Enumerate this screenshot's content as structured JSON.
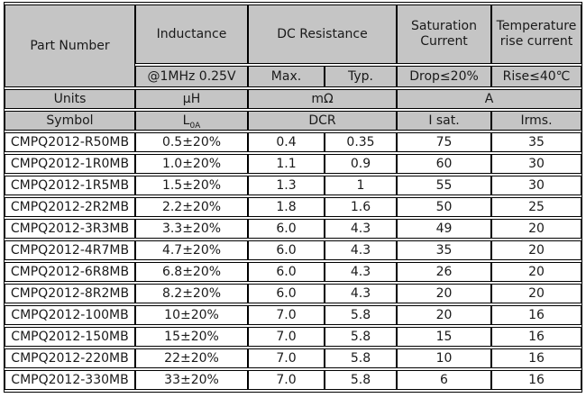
{
  "table": {
    "header": {
      "part_number": "Part Number",
      "inductance": "Inductance",
      "inductance_condition": "@1MHz 0.25V",
      "dc_resistance": "DC Resistance",
      "dc_max": "Max.",
      "dc_typ": "Typ.",
      "saturation_current": "Saturation Current",
      "saturation_condition": "Drop≤20%",
      "temp_rise_current": "Temperature rise current",
      "temp_rise_condition": "Rise≤40℃"
    },
    "units_row": {
      "label": "Units",
      "inductance": "μH",
      "dc_resistance": "mΩ",
      "current": "A"
    },
    "symbol_row": {
      "label": "Symbol",
      "inductance_base": "L",
      "inductance_sub": "0A",
      "dc_resistance": "DCR",
      "saturation": "I sat.",
      "temp_rise": "Irms."
    },
    "colors": {
      "header_bg": "#c5c5c5",
      "row_bg": "#ffffff",
      "border": "#000000"
    },
    "rows": [
      {
        "part": "CMPQ2012-R50MB",
        "inductance": "0.5±20%",
        "dcr_max": "0.4",
        "dcr_typ": "0.35",
        "i_sat": "75",
        "i_rms": "35"
      },
      {
        "part": "CMPQ2012-1R0MB",
        "inductance": "1.0±20%",
        "dcr_max": "1.1",
        "dcr_typ": "0.9",
        "i_sat": "60",
        "i_rms": "30"
      },
      {
        "part": "CMPQ2012-1R5MB",
        "inductance": "1.5±20%",
        "dcr_max": "1.3",
        "dcr_typ": "1",
        "i_sat": "55",
        "i_rms": "30"
      },
      {
        "part": "CMPQ2012-2R2MB",
        "inductance": "2.2±20%",
        "dcr_max": "1.8",
        "dcr_typ": "1.6",
        "i_sat": "50",
        "i_rms": "25"
      },
      {
        "part": "CMPQ2012-3R3MB",
        "inductance": "3.3±20%",
        "dcr_max": "6.0",
        "dcr_typ": "4.3",
        "i_sat": "49",
        "i_rms": "20"
      },
      {
        "part": "CMPQ2012-4R7MB",
        "inductance": "4.7±20%",
        "dcr_max": "6.0",
        "dcr_typ": "4.3",
        "i_sat": "35",
        "i_rms": "20"
      },
      {
        "part": "CMPQ2012-6R8MB",
        "inductance": "6.8±20%",
        "dcr_max": "6.0",
        "dcr_typ": "4.3",
        "i_sat": "26",
        "i_rms": "20"
      },
      {
        "part": "CMPQ2012-8R2MB",
        "inductance": "8.2±20%",
        "dcr_max": "6.0",
        "dcr_typ": "4.3",
        "i_sat": "20",
        "i_rms": "20"
      },
      {
        "part": "CMPQ2012-100MB",
        "inductance": "10±20%",
        "dcr_max": "7.0",
        "dcr_typ": "5.8",
        "i_sat": "20",
        "i_rms": "16"
      },
      {
        "part": "CMPQ2012-150MB",
        "inductance": "15±20%",
        "dcr_max": "7.0",
        "dcr_typ": "5.8",
        "i_sat": "15",
        "i_rms": "16"
      },
      {
        "part": "CMPQ2012-220MB",
        "inductance": "22±20%",
        "dcr_max": "7.0",
        "dcr_typ": "5.8",
        "i_sat": "10",
        "i_rms": "16"
      },
      {
        "part": "CMPQ2012-330MB",
        "inductance": "33±20%",
        "dcr_max": "7.0",
        "dcr_typ": "5.8",
        "i_sat": "6",
        "i_rms": "16"
      }
    ]
  }
}
